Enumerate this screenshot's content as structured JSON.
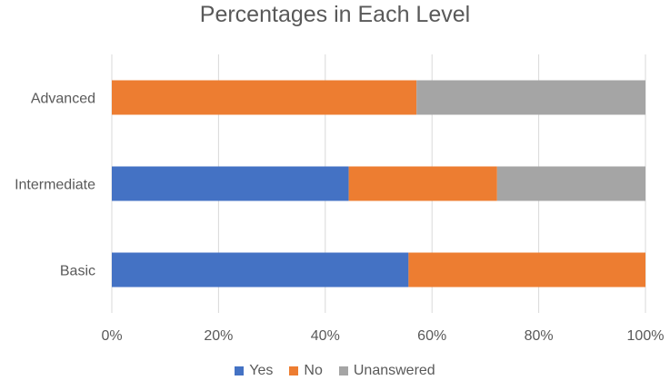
{
  "chart_data": {
    "type": "bar",
    "orientation": "horizontal",
    "stacked": "percent",
    "title": "Percentages in Each Level",
    "categories": [
      "Basic",
      "Intermediate",
      "Advanced"
    ],
    "series": [
      {
        "name": "Yes",
        "color": "#4472C4",
        "values": [
          55.6,
          44.4,
          0
        ]
      },
      {
        "name": "No",
        "color": "#ED7D31",
        "values": [
          44.4,
          27.8,
          57.1
        ]
      },
      {
        "name": "Unanswered",
        "color": "#A5A5A5",
        "values": [
          0,
          27.8,
          42.9
        ]
      }
    ],
    "xlim": [
      0,
      100
    ],
    "x_ticks": [
      "0%",
      "20%",
      "40%",
      "60%",
      "80%",
      "100%"
    ],
    "grid": "vertical",
    "legend_position": "bottom"
  }
}
